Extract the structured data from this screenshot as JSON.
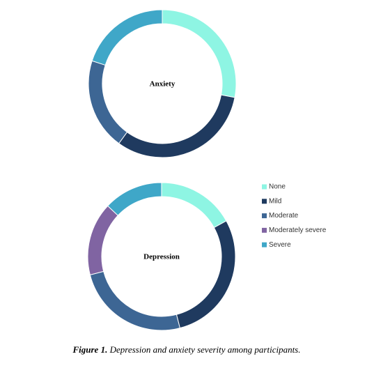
{
  "chart_data": [
    {
      "type": "donut",
      "title": "Anxiety",
      "values": [
        28,
        32,
        20,
        0,
        20
      ]
    },
    {
      "type": "donut",
      "title": "Depression",
      "values": [
        17,
        29,
        25,
        16,
        13
      ]
    }
  ],
  "legend": {
    "categories": [
      "None",
      "Mild",
      "Moderate",
      "Moderately severe",
      "Severe"
    ],
    "colors": [
      "#8ef5e3",
      "#1f3a5f",
      "#3d6694",
      "#8064a2",
      "#3fa7c8"
    ]
  },
  "caption": {
    "label": "Figure 1.",
    "text": "Depression and anxiety severity among participants."
  }
}
